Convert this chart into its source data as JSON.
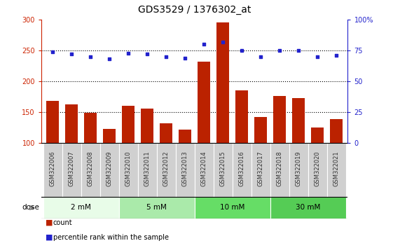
{
  "title": "GDS3529 / 1376302_at",
  "samples": [
    "GSM322006",
    "GSM322007",
    "GSM322008",
    "GSM322009",
    "GSM322010",
    "GSM322011",
    "GSM322012",
    "GSM322013",
    "GSM322014",
    "GSM322015",
    "GSM322016",
    "GSM322017",
    "GSM322018",
    "GSM322019",
    "GSM322020",
    "GSM322021"
  ],
  "counts": [
    168,
    162,
    149,
    122,
    160,
    155,
    132,
    121,
    232,
    296,
    185,
    142,
    176,
    173,
    125,
    138
  ],
  "percentiles": [
    74,
    72,
    70,
    68,
    73,
    72,
    70,
    69,
    80,
    82,
    75,
    70,
    75,
    75,
    70,
    71
  ],
  "bar_color": "#bb2200",
  "dot_color": "#2222cc",
  "ylim_left": [
    100,
    300
  ],
  "ylim_right": [
    0,
    100
  ],
  "yticks_left": [
    100,
    150,
    200,
    250,
    300
  ],
  "yticks_right": [
    0,
    25,
    50,
    75,
    100
  ],
  "ytick_labels_right": [
    "0",
    "25",
    "50",
    "75",
    "100%"
  ],
  "hlines": [
    150,
    200,
    250
  ],
  "dose_groups": [
    {
      "label": "2 mM",
      "start": 0,
      "end": 4,
      "color": "#e8fce8"
    },
    {
      "label": "5 mM",
      "start": 4,
      "end": 8,
      "color": "#aaeaaa"
    },
    {
      "label": "10 mM",
      "start": 8,
      "end": 12,
      "color": "#66dd66"
    },
    {
      "label": "30 mM",
      "start": 12,
      "end": 16,
      "color": "#55cc55"
    }
  ],
  "dose_label": "dose",
  "legend_count_label": "count",
  "legend_pct_label": "percentile rank within the sample",
  "title_fontsize": 10,
  "bar_tick_fontsize": 6,
  "axis_tick_fontsize": 7,
  "axis_color_left": "#cc2200",
  "axis_color_right": "#2222cc",
  "bar_width": 0.65,
  "sample_box_color": "#cccccc",
  "sample_text_color": "#333333"
}
